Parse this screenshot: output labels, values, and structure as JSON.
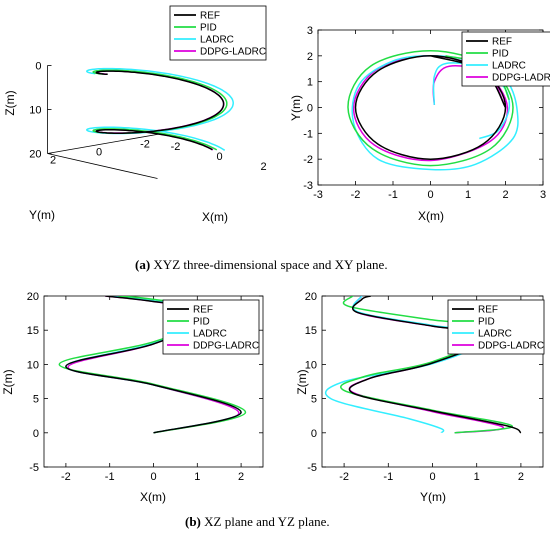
{
  "colors": {
    "REF": "#000000",
    "PID": "#22dd44",
    "LADRC": "#33eeff",
    "DDPG-LADRC": "#dd00dd"
  },
  "captions": {
    "a_tag": "(a)",
    "a_text": "XYZ three-dimensional space and XY plane.",
    "b_tag": "(b)",
    "b_text": "XZ plane and YZ plane."
  },
  "chart_data": [
    {
      "type": "line3d",
      "panel": "xyz",
      "xlabel": "X(m)",
      "ylabel": "Y(m)",
      "zlabel": "Z(m)",
      "xticks": [
        "-2",
        "0",
        "2"
      ],
      "yticks": [
        "2",
        "0",
        "-2"
      ],
      "zticks": [
        "0",
        "10",
        "20"
      ],
      "zlim": [
        0,
        20
      ],
      "z_direction": "reversed",
      "legend": [
        "REF",
        "PID",
        "LADRC",
        "DDPG-LADRC"
      ],
      "legend_position": "top-right",
      "series": [
        {
          "name": "REF",
          "radius": 2.0,
          "turns": 1.5,
          "z": [
            0,
            20
          ]
        },
        {
          "name": "PID",
          "radius": 2.1,
          "turns": 1.5,
          "z": [
            0,
            20
          ]
        },
        {
          "name": "LADRC",
          "radius": 2.3,
          "turns": 1.5,
          "z": [
            0,
            20
          ]
        },
        {
          "name": "DDPG-LADRC",
          "radius": 2.0,
          "turns": 1.5,
          "z": [
            0,
            20
          ]
        }
      ]
    },
    {
      "type": "line",
      "panel": "xy",
      "xlabel": "X(m)",
      "ylabel": "Y(m)",
      "xlim": [
        -3,
        3
      ],
      "ylim": [
        -3,
        3
      ],
      "xticks": [
        -3,
        -2,
        -1,
        0,
        1,
        2,
        3
      ],
      "yticks": [
        -3,
        -2,
        -1,
        0,
        1,
        2,
        3
      ],
      "legend": [
        "REF",
        "PID",
        "LADRC",
        "DDPG-LADRC"
      ],
      "legend_position": "top-right",
      "series": [
        {
          "name": "REF",
          "points": [
            [
              2,
              0
            ],
            [
              1.41,
              1.41
            ],
            [
              0,
              2
            ],
            [
              -1.41,
              1.41
            ],
            [
              -2,
              0
            ],
            [
              -1.41,
              -1.41
            ],
            [
              0,
              -2
            ],
            [
              1.41,
              -1.41
            ],
            [
              2,
              0
            ],
            [
              1.41,
              1.41
            ],
            [
              0,
              2
            ]
          ]
        },
        {
          "name": "PID",
          "points": [
            [
              2.1,
              0.3
            ],
            [
              1.6,
              1.6
            ],
            [
              0,
              2.2
            ],
            [
              -1.6,
              1.6
            ],
            [
              -2.2,
              0
            ],
            [
              -1.55,
              -1.6
            ],
            [
              0,
              -2.25
            ],
            [
              1.6,
              -1.6
            ],
            [
              2.2,
              0
            ],
            [
              1.6,
              1.55
            ],
            [
              0.4,
              2
            ]
          ]
        },
        {
          "name": "LADRC",
          "points": [
            [
              0.1,
              0.1
            ],
            [
              0.1,
              1.2
            ],
            [
              0.4,
              1.7
            ],
            [
              1.3,
              1.6
            ],
            [
              2.0,
              1.1
            ],
            [
              2.3,
              0
            ],
            [
              2.2,
              -1.2
            ],
            [
              1.2,
              -2.2
            ],
            [
              0,
              -2.4
            ],
            [
              -1.4,
              -2.0
            ],
            [
              -2.05,
              -0.6
            ],
            [
              -1.9,
              0.9
            ],
            [
              -1.0,
              1.8
            ],
            [
              0,
              2.0
            ],
            [
              1.0,
              1.8
            ],
            [
              1.9,
              0.9
            ],
            [
              2.1,
              0
            ],
            [
              1.8,
              -0.9
            ],
            [
              1.3,
              -1.2
            ]
          ]
        },
        {
          "name": "DDPG-LADRC",
          "points": [
            [
              0.1,
              0.1
            ],
            [
              0.1,
              1.0
            ],
            [
              0.5,
              1.6
            ],
            [
              1.5,
              1.3
            ],
            [
              2.05,
              0
            ],
            [
              1.6,
              -1.3
            ],
            [
              0,
              -2.05
            ],
            [
              -1.5,
              -1.45
            ],
            [
              -2.05,
              0
            ],
            [
              -1.45,
              1.45
            ],
            [
              0,
              2
            ],
            [
              1.45,
              1.4
            ],
            [
              2,
              0
            ]
          ]
        }
      ]
    },
    {
      "type": "line",
      "panel": "xz",
      "xlabel": "X(m)",
      "ylabel": "Z(m)",
      "xlim": [
        -2.5,
        2.5
      ],
      "ylim": [
        -5,
        20
      ],
      "xticks": [
        -2,
        -1,
        0,
        1,
        2
      ],
      "yticks": [
        -5,
        0,
        5,
        10,
        15,
        20
      ],
      "legend": [
        "REF",
        "PID",
        "LADRC",
        "DDPG-LADRC"
      ],
      "legend_position": "top-right",
      "series": [
        {
          "name": "REF",
          "points": [
            [
              0,
              0
            ],
            [
              2,
              3
            ],
            [
              0,
              7
            ],
            [
              -2,
              9.7
            ],
            [
              0,
              13
            ],
            [
              1.5,
              17.5
            ],
            [
              0,
              19.2
            ],
            [
              -1.1,
              20
            ]
          ]
        },
        {
          "name": "PID",
          "points": [
            [
              0,
              0
            ],
            [
              2.1,
              3
            ],
            [
              0,
              7.1
            ],
            [
              -2.15,
              10
            ],
            [
              0,
              13.3
            ],
            [
              1.6,
              17.7
            ],
            [
              0,
              19.5
            ],
            [
              -0.8,
              20
            ]
          ]
        },
        {
          "name": "LADRC",
          "points": [
            [
              0,
              0
            ],
            [
              2,
              3
            ],
            [
              0,
              7
            ],
            [
              -2,
              9.7
            ],
            [
              0,
              13.1
            ],
            [
              1.5,
              17.5
            ],
            [
              0,
              19.3
            ],
            [
              -1.0,
              20
            ]
          ]
        },
        {
          "name": "DDPG-LADRC",
          "points": [
            [
              0,
              0
            ],
            [
              1.95,
              2.9
            ],
            [
              0,
              7
            ],
            [
              -1.95,
              9.6
            ],
            [
              0,
              13
            ],
            [
              1.45,
              17.4
            ],
            [
              0,
              19.2
            ],
            [
              -1.1,
              20
            ]
          ]
        }
      ]
    },
    {
      "type": "line",
      "panel": "yz",
      "xlabel": "Y(m)",
      "ylabel": "Z(m)",
      "xlim": [
        -2.5,
        2.5
      ],
      "ylim": [
        -5,
        20
      ],
      "xticks": [
        -2,
        -1,
        0,
        1,
        2
      ],
      "yticks": [
        -5,
        0,
        5,
        10,
        15,
        20
      ],
      "legend": [
        "REF",
        "PID",
        "LADRC",
        "DDPG-LADRC"
      ],
      "legend_position": "top-right",
      "series": [
        {
          "name": "REF",
          "points": [
            [
              2,
              0
            ],
            [
              1.7,
              1
            ],
            [
              0,
              3.2
            ],
            [
              -1.8,
              5.8
            ],
            [
              -1.4,
              8
            ],
            [
              0,
              10.2
            ],
            [
              1.4,
              14.2
            ],
            [
              0,
              15.6
            ],
            [
              -1.7,
              17.6
            ],
            [
              -1.6,
              19.5
            ],
            [
              -1.4,
              20
            ]
          ]
        },
        {
          "name": "PID",
          "points": [
            [
              0.5,
              0
            ],
            [
              1.8,
              1
            ],
            [
              0,
              3.3
            ],
            [
              -2.0,
              6.2
            ],
            [
              -1.5,
              8.3
            ],
            [
              0,
              10.4
            ],
            [
              1.6,
              15.2
            ],
            [
              0,
              16.5
            ],
            [
              -1.9,
              18.5
            ],
            [
              -1.8,
              20
            ]
          ]
        },
        {
          "name": "LADRC",
          "points": [
            [
              0.2,
              0
            ],
            [
              0.2,
              0.6
            ],
            [
              -0.5,
              2
            ],
            [
              -2.3,
              5
            ],
            [
              -2.0,
              7.5
            ],
            [
              0,
              10.1
            ],
            [
              1.4,
              14.2
            ],
            [
              0,
              15.7
            ],
            [
              -1.7,
              17.7
            ],
            [
              -1.6,
              20
            ]
          ]
        },
        {
          "name": "DDPG-LADRC",
          "points": [
            [
              0.5,
              0
            ],
            [
              1.6,
              0.8
            ],
            [
              0,
              3.1
            ],
            [
              -1.8,
              5.9
            ],
            [
              -1.4,
              8
            ],
            [
              0,
              10.2
            ],
            [
              1.4,
              14.2
            ],
            [
              0,
              15.6
            ],
            [
              -1.7,
              17.6
            ],
            [
              -1.6,
              20
            ]
          ]
        }
      ]
    }
  ]
}
